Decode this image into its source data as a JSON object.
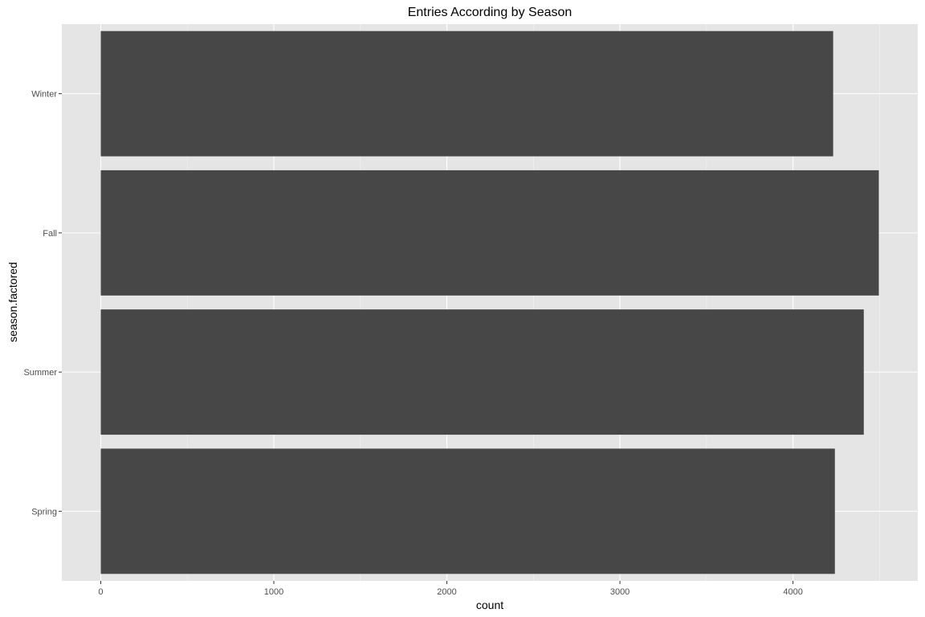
{
  "chart_data": {
    "type": "bar",
    "orientation": "horizontal",
    "title": "Entries According by Season",
    "xlabel": "count",
    "ylabel": "season.factored",
    "categories": [
      "Spring",
      "Summer",
      "Fall",
      "Winter"
    ],
    "values": [
      4242,
      4409,
      4496,
      4232
    ],
    "xlim": [
      -225,
      4721
    ],
    "x_ticks": [
      0,
      1000,
      2000,
      3000,
      4000
    ],
    "grid": true,
    "colors": {
      "bar": "#474747",
      "panel": "#e5e5e5",
      "grid_major": "#ffffff",
      "grid_minor": "#f2f2f2"
    }
  }
}
